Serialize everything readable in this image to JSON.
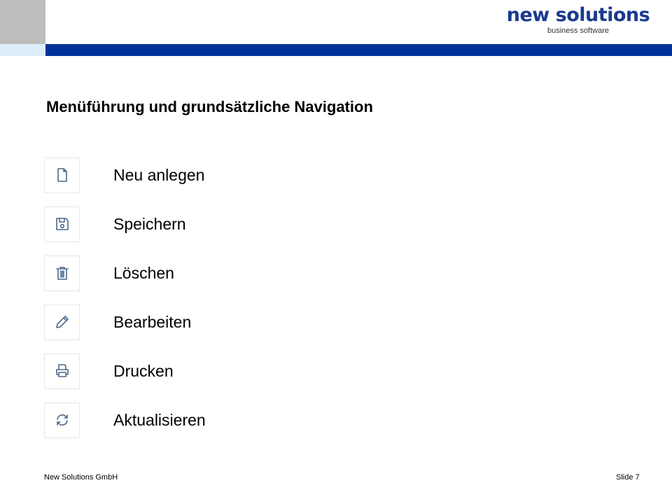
{
  "header": {
    "logo_title": "new solutions",
    "logo_subtitle": "business software",
    "colors": {
      "bar": "#003399",
      "logo": "#1a3a8f"
    }
  },
  "title": "Menüführung und grundsätzliche Navigation",
  "items": [
    {
      "icon": "new-document-icon",
      "label": "Neu anlegen"
    },
    {
      "icon": "save-icon",
      "label": "Speichern"
    },
    {
      "icon": "trash-icon",
      "label": "Löschen"
    },
    {
      "icon": "pencil-icon",
      "label": "Bearbeiten"
    },
    {
      "icon": "printer-icon",
      "label": "Drucken"
    },
    {
      "icon": "refresh-icon",
      "label": "Aktualisieren"
    }
  ],
  "footer": {
    "company": "New Solutions GmbH",
    "slide": "Slide 7"
  }
}
